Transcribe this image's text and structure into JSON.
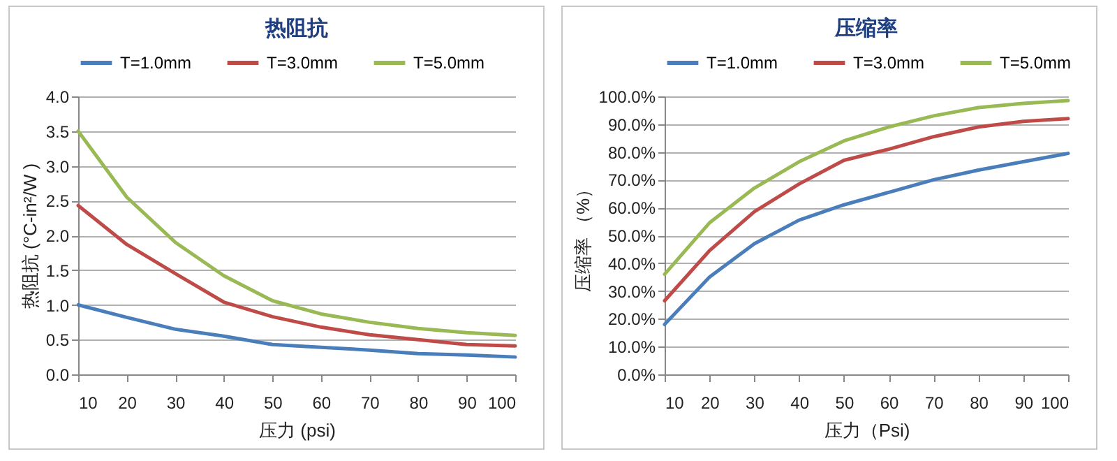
{
  "chart_data": [
    {
      "type": "line",
      "title": "热阻抗",
      "xlabel": "压力 (psi)",
      "ylabel": "热阻抗 (°C-in²/W )",
      "x": [
        10,
        20,
        30,
        40,
        50,
        60,
        70,
        80,
        90,
        100
      ],
      "xlim": [
        10,
        100
      ],
      "xticks": [
        10,
        20,
        30,
        40,
        50,
        60,
        70,
        80,
        90,
        100
      ],
      "ylim": [
        0,
        4
      ],
      "yticks": [
        {
          "value": 0,
          "label": "0.0"
        },
        {
          "value": 0.5,
          "label": "0.5"
        },
        {
          "value": 1,
          "label": "1.0"
        },
        {
          "value": 1.5,
          "label": "1.5"
        },
        {
          "value": 2,
          "label": "2.0"
        },
        {
          "value": 2.5,
          "label": "2.5"
        },
        {
          "value": 3,
          "label": "3.0"
        },
        {
          "value": 3.5,
          "label": "3.5"
        },
        {
          "value": 4,
          "label": "4.0"
        }
      ],
      "grid": "y",
      "legend": "top",
      "marker": "none",
      "series": [
        {
          "name": "T=1.0mm",
          "color": "#4a7ebb",
          "values": [
            1.0,
            0.82,
            0.65,
            0.55,
            0.43,
            0.39,
            0.35,
            0.3,
            0.28,
            0.25
          ]
        },
        {
          "name": "T=3.0mm",
          "color": "#be4b48",
          "values": [
            2.43,
            1.87,
            1.45,
            1.04,
            0.83,
            0.68,
            0.57,
            0.5,
            0.43,
            0.41
          ]
        },
        {
          "name": "T=5.0mm",
          "color": "#98b954",
          "values": [
            3.5,
            2.55,
            1.9,
            1.42,
            1.06,
            0.87,
            0.75,
            0.66,
            0.6,
            0.56
          ]
        }
      ]
    },
    {
      "type": "line",
      "title": "压缩率",
      "xlabel": "压力（Psi)",
      "ylabel": "压缩率 （%）",
      "x": [
        10,
        20,
        30,
        40,
        50,
        60,
        70,
        80,
        90,
        100
      ],
      "xlim": [
        10,
        100
      ],
      "xticks": [
        10,
        20,
        30,
        40,
        50,
        60,
        70,
        80,
        90,
        100
      ],
      "ylim": [
        0,
        100
      ],
      "yticks": [
        {
          "value": 0,
          "label": "0.0%"
        },
        {
          "value": 10,
          "label": "10.0%"
        },
        {
          "value": 20,
          "label": "20.0%"
        },
        {
          "value": 30,
          "label": "30.0%"
        },
        {
          "value": 40,
          "label": "40.0%"
        },
        {
          "value": 50,
          "label": "50.0%"
        },
        {
          "value": 60,
          "label": "60.0%"
        },
        {
          "value": 70,
          "label": "70.0%"
        },
        {
          "value": 80,
          "label": "80.0%"
        },
        {
          "value": 90,
          "label": "90.0%"
        },
        {
          "value": 100,
          "label": "100.0%"
        }
      ],
      "grid": "y",
      "legend": "top",
      "marker": "none",
      "series": [
        {
          "name": "T=1.0mm",
          "color": "#4a7ebb",
          "values": [
            18,
            35,
            47,
            55.5,
            61,
            65.5,
            70,
            73.5,
            76.5,
            79.5
          ]
        },
        {
          "name": "T=3.0mm",
          "color": "#be4b48",
          "values": [
            26.5,
            44.5,
            58.5,
            68.5,
            77,
            81,
            85.5,
            89,
            91,
            92
          ]
        },
        {
          "name": "T=5.0mm",
          "color": "#98b954",
          "values": [
            36,
            54.5,
            67,
            76.5,
            84,
            89,
            93,
            96,
            97.5,
            98.5
          ]
        }
      ]
    }
  ]
}
